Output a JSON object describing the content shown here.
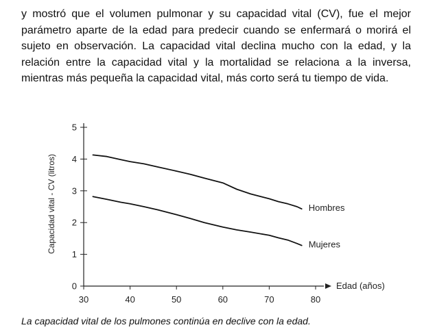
{
  "text": {
    "paragraph": "y mostró que el volumen pulmonar y su capacidad vital (CV), fue el mejor parámetro aparte de la edad para predecir cuando se enfermará o morirá el sujeto en observación. La capacidad vital declina mucho con la edad, y la relación entre la capacidad vital y la mortalidad se relaciona a la inversa, mientras más pequeña la capacidad vital, más corto será tu tiempo de vida.",
    "caption": "La capacidad vital de los pulmones continúa en declive con la edad."
  },
  "chart_data": {
    "type": "line",
    "title": "",
    "xlabel": "Edad (años)",
    "ylabel": "Capacidad vital - CV (litros)",
    "xlim": [
      30,
      80
    ],
    "ylim": [
      0,
      5
    ],
    "x_ticks": [
      30,
      40,
      50,
      60,
      70,
      80
    ],
    "y_ticks": [
      0,
      1,
      2,
      3,
      4,
      5
    ],
    "grid": false,
    "legend": "inline labels at line ends",
    "series": [
      {
        "name": "Hombres",
        "color": "#111111",
        "x": [
          32,
          35,
          38,
          40,
          43,
          46,
          50,
          53,
          56,
          60,
          63,
          66,
          70,
          72,
          74,
          76,
          77
        ],
        "y": [
          4.13,
          4.08,
          3.98,
          3.92,
          3.85,
          3.75,
          3.62,
          3.52,
          3.4,
          3.25,
          3.05,
          2.9,
          2.75,
          2.66,
          2.59,
          2.5,
          2.43
        ]
      },
      {
        "name": "Mujeres",
        "color": "#111111",
        "x": [
          32,
          35,
          38,
          40,
          43,
          46,
          50,
          53,
          56,
          60,
          63,
          66,
          70,
          72,
          74,
          76,
          77
        ],
        "y": [
          2.82,
          2.73,
          2.64,
          2.59,
          2.5,
          2.4,
          2.25,
          2.13,
          2.0,
          1.86,
          1.77,
          1.7,
          1.6,
          1.52,
          1.45,
          1.34,
          1.28
        ]
      }
    ]
  }
}
